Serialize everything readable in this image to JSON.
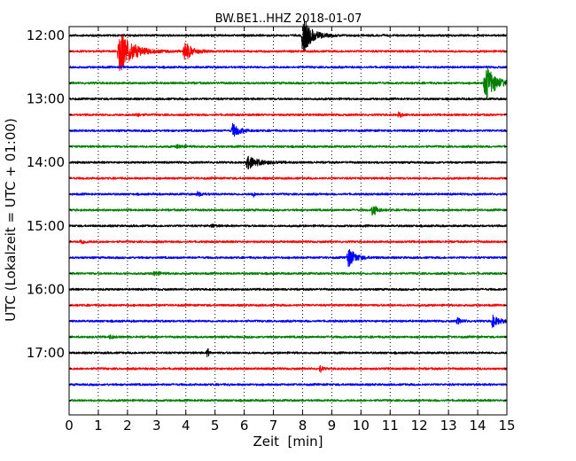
{
  "chart_data": {
    "type": "line",
    "title": "BW.BE1..HHZ 2018-01-07",
    "xlabel": "Zeit  [min]",
    "ylabel": "UTC (Lokalzeit = UTC + 01:00)",
    "xlim": [
      0,
      15
    ],
    "xticks": [
      0,
      1,
      2,
      3,
      4,
      5,
      6,
      7,
      8,
      9,
      10,
      11,
      12,
      13,
      14,
      15
    ],
    "y_start_time": "12:00",
    "row_interval_minutes": 15,
    "ytick_labels": [
      "12:00",
      "13:00",
      "14:00",
      "15:00",
      "16:00",
      "17:00"
    ],
    "grid": "vertical dotted",
    "line_colors": [
      "#000000",
      "#ff0000",
      "#0000ff",
      "#008000"
    ],
    "traces": [
      {
        "start": "12:00",
        "color": "#000000",
        "events": [
          {
            "t": 8.0,
            "amp": 1.0,
            "dur": 0.6
          }
        ]
      },
      {
        "start": "12:15",
        "color": "#ff0000",
        "events": [
          {
            "t": 1.7,
            "amp": 1.2,
            "dur": 0.9
          },
          {
            "t": 3.95,
            "amp": 0.55,
            "dur": 0.5
          }
        ]
      },
      {
        "start": "12:30",
        "color": "#0000ff",
        "events": []
      },
      {
        "start": "12:45",
        "color": "#008000",
        "events": [
          {
            "t": 14.25,
            "amp": 1.0,
            "dur": 0.7
          }
        ]
      },
      {
        "start": "13:00",
        "color": "#000000",
        "events": []
      },
      {
        "start": "13:15",
        "color": "#ff0000",
        "events": [
          {
            "t": 2.3,
            "amp": 0.15,
            "dur": 0.2
          },
          {
            "t": 11.3,
            "amp": 0.15,
            "dur": 0.2
          }
        ]
      },
      {
        "start": "13:30",
        "color": "#0000ff",
        "events": [
          {
            "t": 5.6,
            "amp": 0.35,
            "dur": 0.5
          }
        ]
      },
      {
        "start": "13:45",
        "color": "#008000",
        "events": [
          {
            "t": 3.7,
            "amp": 0.1,
            "dur": 0.4
          }
        ]
      },
      {
        "start": "14:00",
        "color": "#000000",
        "events": [
          {
            "t": 6.1,
            "amp": 0.35,
            "dur": 0.8
          }
        ]
      },
      {
        "start": "14:15",
        "color": "#ff0000",
        "events": []
      },
      {
        "start": "14:30",
        "color": "#0000ff",
        "events": [
          {
            "t": 4.4,
            "amp": 0.12,
            "dur": 0.3
          },
          {
            "t": 6.3,
            "amp": 0.2,
            "dur": 0.1
          }
        ]
      },
      {
        "start": "14:45",
        "color": "#008000",
        "events": [
          {
            "t": 10.4,
            "amp": 0.35,
            "dur": 0.3
          }
        ]
      },
      {
        "start": "15:00",
        "color": "#000000",
        "events": [
          {
            "t": 4.9,
            "amp": 0.1,
            "dur": 0.2
          }
        ]
      },
      {
        "start": "15:15",
        "color": "#ff0000",
        "events": [
          {
            "t": 0.4,
            "amp": 0.12,
            "dur": 0.3
          }
        ]
      },
      {
        "start": "15:30",
        "color": "#0000ff",
        "events": [
          {
            "t": 9.55,
            "amp": 0.55,
            "dur": 0.5
          }
        ]
      },
      {
        "start": "15:45",
        "color": "#008000",
        "events": [
          {
            "t": 2.9,
            "amp": 0.12,
            "dur": 0.4
          }
        ]
      },
      {
        "start": "16:00",
        "color": "#000000",
        "events": []
      },
      {
        "start": "16:15",
        "color": "#ff0000",
        "events": []
      },
      {
        "start": "16:30",
        "color": "#0000ff",
        "events": [
          {
            "t": 13.3,
            "amp": 0.15,
            "dur": 0.3
          },
          {
            "t": 14.5,
            "amp": 0.3,
            "dur": 0.5
          }
        ]
      },
      {
        "start": "16:45",
        "color": "#008000",
        "events": [
          {
            "t": 1.4,
            "amp": 0.1,
            "dur": 0.2
          }
        ]
      },
      {
        "start": "17:00",
        "color": "#000000",
        "events": [
          {
            "t": 4.75,
            "amp": 0.3,
            "dur": 0.08
          }
        ]
      },
      {
        "start": "17:15",
        "color": "#ff0000",
        "events": [
          {
            "t": 8.6,
            "amp": 0.2,
            "dur": 0.15
          }
        ]
      },
      {
        "start": "17:30",
        "color": "#0000ff",
        "events": []
      },
      {
        "start": "17:45",
        "color": "#008000",
        "events": []
      }
    ]
  }
}
